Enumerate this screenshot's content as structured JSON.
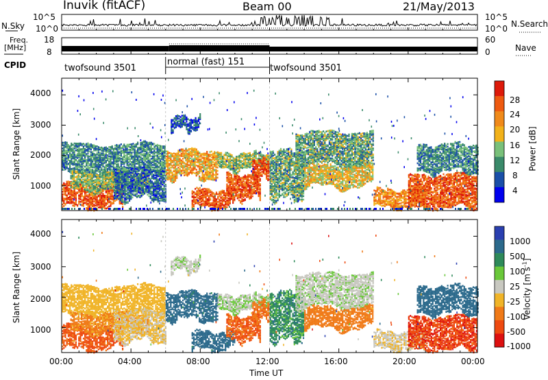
{
  "header": {
    "station": "Inuvik (fitACF)",
    "beam": "Beam 00",
    "date": "21/May/2013"
  },
  "summary_panels": {
    "nsky_label": "N.Sky",
    "nsky_ticks": [
      "10^5",
      "10^0"
    ],
    "nsearch_label": "N.Search",
    "nsearch_ticks": [
      "10^5",
      "10^0"
    ],
    "freq_label_line1": "Freq.",
    "freq_label_line2": "[MHz]",
    "freq_ticks": [
      "18",
      "8"
    ],
    "nave_label": "Nave",
    "nave_ticks": [
      "60",
      "0"
    ],
    "cpid_label": "CPID",
    "cpid_segments": [
      {
        "label": "twofsound 3501",
        "start_h": 0,
        "end_h": 6
      },
      {
        "label": "normal (fast) 151",
        "start_h": 6,
        "end_h": 12
      },
      {
        "label": "twofsound 3501",
        "start_h": 12,
        "end_h": 24
      }
    ]
  },
  "power_panel": {
    "ylabel": "Slant Range [km]",
    "yticks": [
      "1000",
      "2000",
      "3000",
      "4000"
    ],
    "colorbar_label": "Power [dB]",
    "colorbar_ticks": [
      "28",
      "24",
      "20",
      "16",
      "12",
      "8",
      "4"
    ],
    "colors": [
      "#0000ee",
      "#1a4fa8",
      "#3a8a6a",
      "#79c07a",
      "#f2b21a",
      "#f08a1a",
      "#ee5a10",
      "#dd1a0a"
    ]
  },
  "velocity_panel": {
    "ylabel": "Slant Range [km]",
    "yticks": [
      "1000",
      "2000",
      "3000",
      "4000"
    ],
    "colorbar_label": "Velocity [m s",
    "colorbar_exp": "-1",
    "colorbar_label_end": "]",
    "colorbar_ticks": [
      "1000",
      "500",
      "100",
      "25",
      "-25",
      "-100",
      "-500",
      "-1000"
    ],
    "colors": [
      "#2a3fb0",
      "#2c6a8c",
      "#2e8a5a",
      "#6ac83a",
      "#c8c8c0",
      "#f0b428",
      "#f07a18",
      "#ee4a10",
      "#dd1010"
    ]
  },
  "x_axis": {
    "label": "Time UT",
    "ticks": [
      "00:00",
      "04:00",
      "08:00",
      "12:00",
      "16:00",
      "20:00",
      "00:00"
    ]
  },
  "chart_data": {
    "type": "heatmap",
    "x_unit": "hours UT",
    "xlim": [
      0,
      24
    ],
    "ylim_km": [
      180,
      4550
    ],
    "title": "Inuvik (fitACF)",
    "xlabel": "Time UT",
    "ylabel": "Slant Range [km]",
    "power_scale_db": [
      0,
      32
    ],
    "velocity_scale_ms": [
      -1000,
      1000
    ],
    "scatter_regions": [
      {
        "t_start": 0.0,
        "t_end": 3.5,
        "r_start": 300,
        "r_end": 1100,
        "power_db": 26,
        "velocity_ms": -600
      },
      {
        "t_start": 0.0,
        "t_end": 6.0,
        "r_start": 1400,
        "r_end": 2400,
        "power_db": 10,
        "velocity_ms": -60
      },
      {
        "t_start": 0.5,
        "t_end": 5.0,
        "r_start": 900,
        "r_end": 1500,
        "power_db": 14,
        "velocity_ms": -120
      },
      {
        "t_start": 3.0,
        "t_end": 6.0,
        "r_start": 600,
        "r_end": 1600,
        "power_db": 8,
        "velocity_ms": -30
      },
      {
        "t_start": 6.0,
        "t_end": 9.0,
        "r_start": 1300,
        "r_end": 2200,
        "power_db": 20,
        "velocity_ms": 150
      },
      {
        "t_start": 6.3,
        "t_end": 8.0,
        "r_start": 2900,
        "r_end": 3300,
        "power_db": 6,
        "velocity_ms": 10
      },
      {
        "t_start": 7.5,
        "t_end": 10.0,
        "r_start": 300,
        "r_end": 900,
        "power_db": 26,
        "velocity_ms": 150
      },
      {
        "t_start": 9.5,
        "t_end": 11.5,
        "r_start": 600,
        "r_end": 1400,
        "power_db": 26,
        "velocity_ms": -550
      },
      {
        "t_start": 9.0,
        "t_end": 12.0,
        "r_start": 1600,
        "r_end": 2100,
        "power_db": 14,
        "velocity_ms": 20
      },
      {
        "t_start": 11.0,
        "t_end": 12.0,
        "r_start": 1300,
        "r_end": 1900,
        "power_db": 28,
        "velocity_ms": -400
      },
      {
        "t_start": 12.0,
        "t_end": 14.0,
        "r_start": 600,
        "r_end": 2200,
        "power_db": 12,
        "velocity_ms": 80
      },
      {
        "t_start": 13.5,
        "t_end": 18.0,
        "r_start": 1700,
        "r_end": 2800,
        "power_db": 12,
        "velocity_ms": 10
      },
      {
        "t_start": 14.0,
        "t_end": 18.0,
        "r_start": 1000,
        "r_end": 1700,
        "power_db": 18,
        "velocity_ms": -150
      },
      {
        "t_start": 18.0,
        "t_end": 21.0,
        "r_start": 300,
        "r_end": 900,
        "power_db": 22,
        "velocity_ms": -20
      },
      {
        "t_start": 20.0,
        "t_end": 24.0,
        "r_start": 300,
        "r_end": 1400,
        "power_db": 26,
        "velocity_ms": -700
      },
      {
        "t_start": 20.5,
        "t_end": 24.0,
        "r_start": 1500,
        "r_end": 2400,
        "power_db": 10,
        "velocity_ms": 200
      }
    ]
  }
}
